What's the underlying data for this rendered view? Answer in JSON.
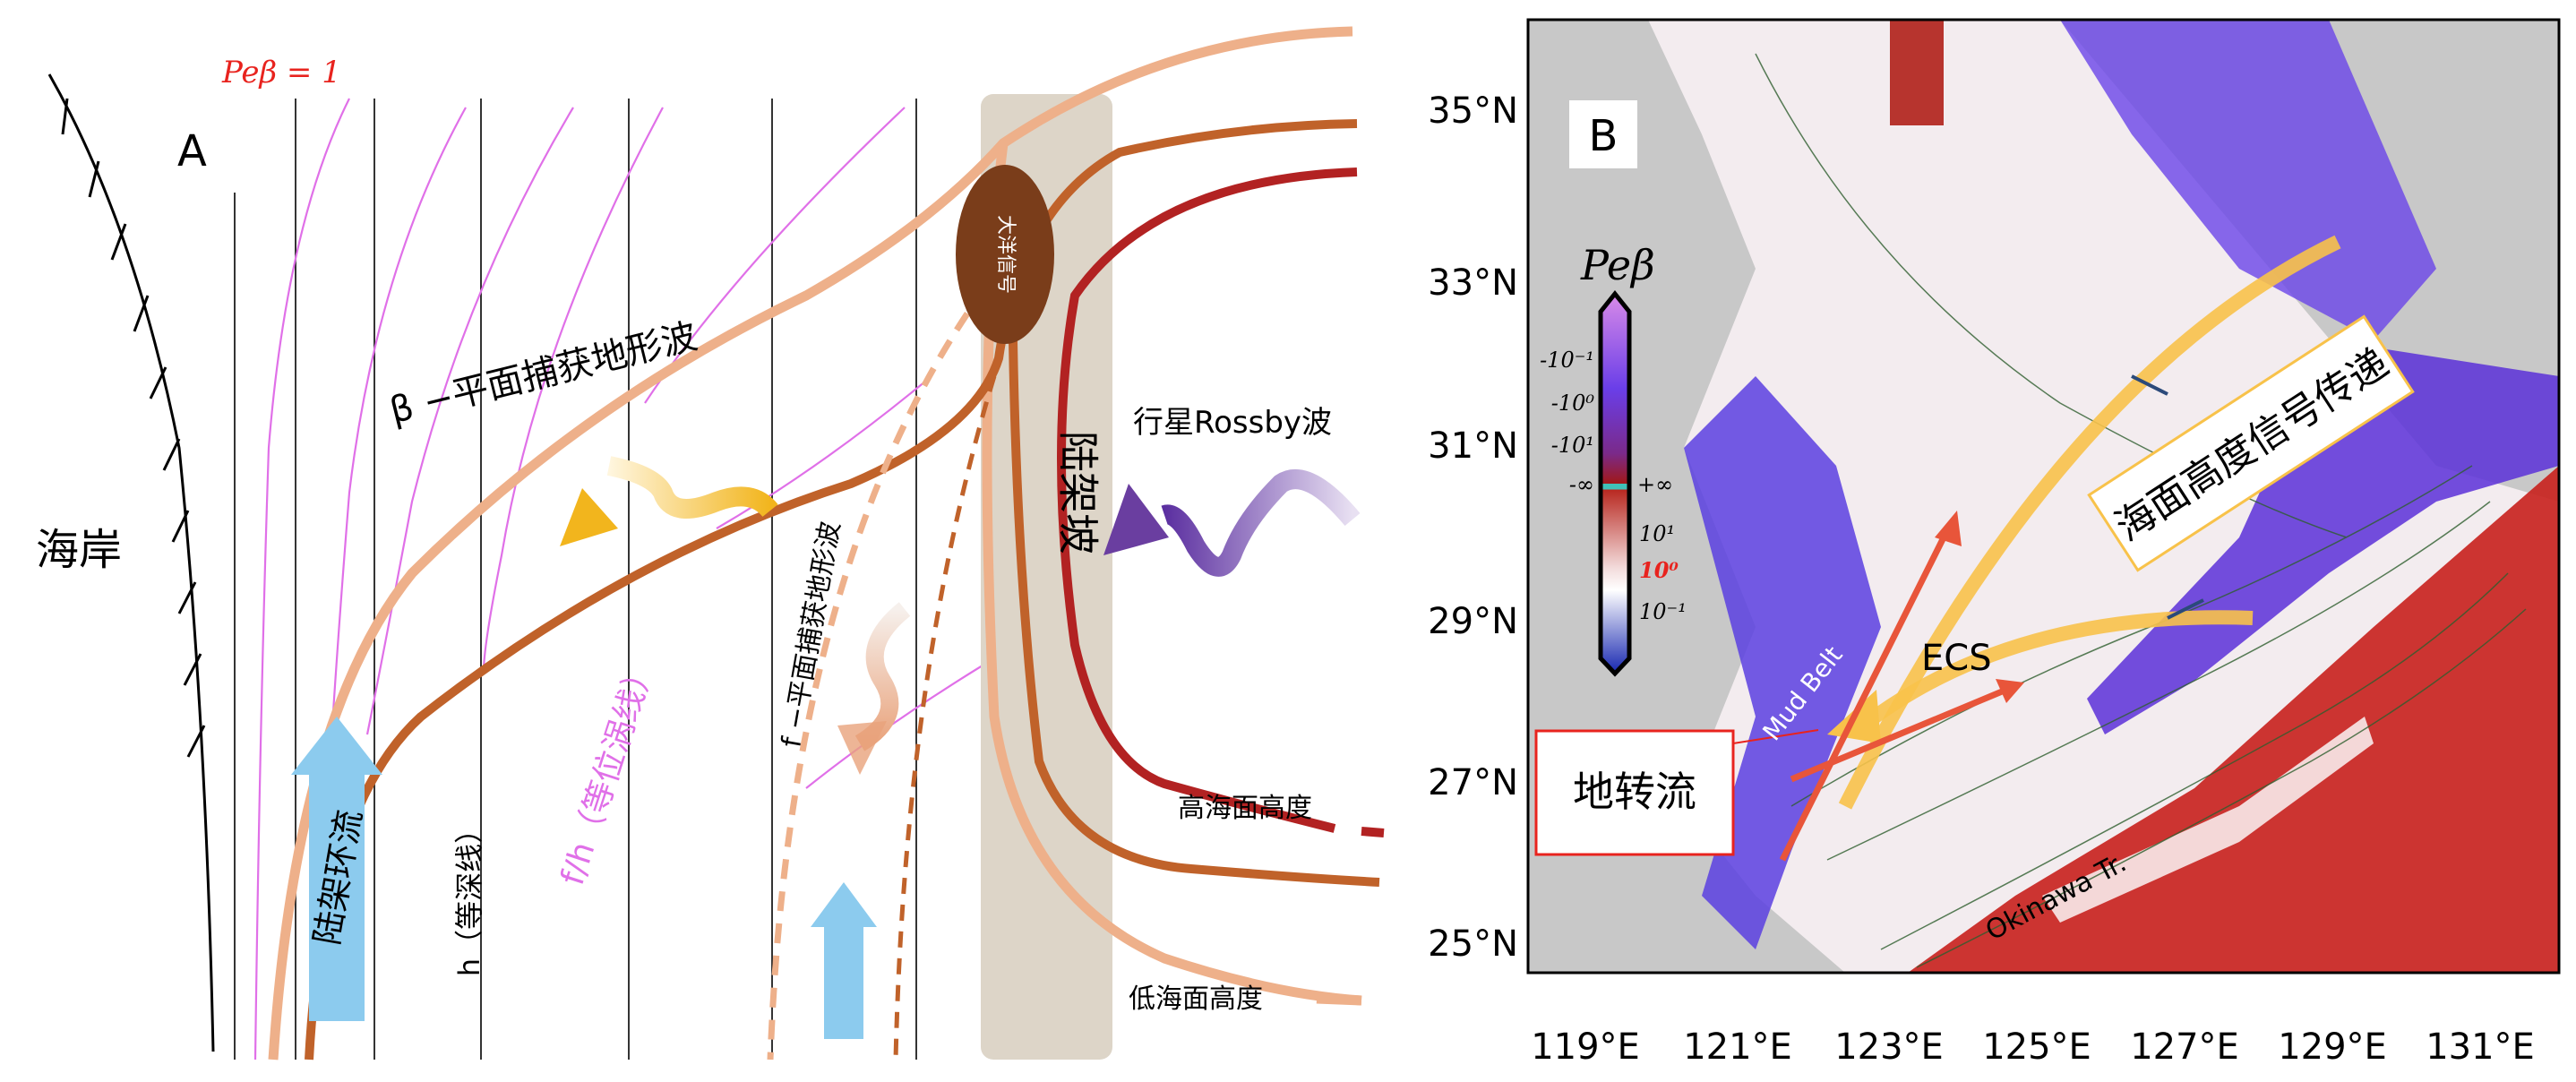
{
  "panel_a": {
    "label": "A",
    "peb_label": "Peβ = 1",
    "coast_label": "海岸",
    "slope_label": "陆架坡",
    "ocean_signal_label": "大洋信号",
    "rossby_label": "行星Rossby波",
    "beta_wave_label": "β −平面捕获地形波",
    "f_wave_label": "f −平面捕获地形波",
    "pv_label": "f/h（等位涡线）",
    "depth_label": "h（等深线）",
    "shelf_current_label": "陆架环流",
    "high_ssh_label": "高海面高度",
    "low_ssh_label": "低海面高度",
    "colors": {
      "pv_lines": "#e070e8",
      "high_ssh": "#b22222",
      "mid_ssh": "#c0622a",
      "low_ssh": "#eeb08a",
      "slope": "#ddd5c8",
      "signal": "#7a3d1a",
      "shelf_arrow": "#8ccbee"
    }
  },
  "panel_b": {
    "label": "B",
    "lat_labels": [
      "35°N",
      "33°N",
      "31°N",
      "29°N",
      "27°N",
      "25°N"
    ],
    "lon_labels": [
      "119°E",
      "121°E",
      "123°E",
      "125°E",
      "127°E",
      "129°E",
      "131°E"
    ],
    "colorbar": {
      "title": "Peβ",
      "left_ticks": [
        "-10⁻¹",
        "-10⁰",
        "-10¹",
        "-∞"
      ],
      "right_ticks": [
        "+∞",
        "10¹",
        "10⁰",
        "10⁻¹"
      ],
      "highlight_tick": "10⁰",
      "highlight_color": "#e8231e"
    },
    "ecs_label": "ECS",
    "mud_belt_label": "Mud Belt",
    "okinawa_label": "Okinawa Tr.",
    "geostrophic_label": "地转流",
    "ssh_signal_label": "海面高度信号传递",
    "colors": {
      "land": "#c8c8c8",
      "positive": "#c8201c",
      "negative": "#4b2ee0",
      "arrow_red": "#e8553a",
      "arrow_yellow": "#f8c24a"
    }
  }
}
